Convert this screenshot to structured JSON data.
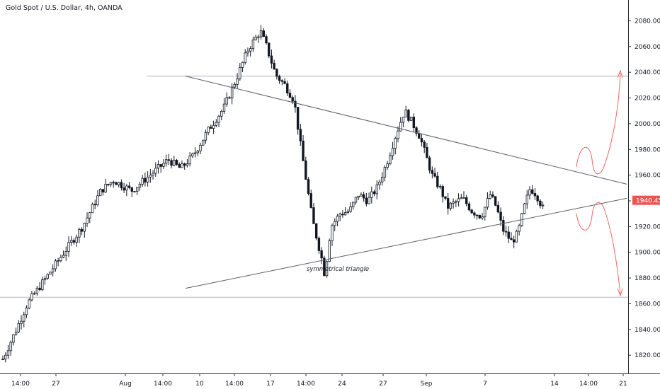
{
  "chart_data": {
    "type": "candlestick",
    "title": "Gold Spot / U.S. Dollar, 4h, OANDA",
    "ylim": [
      1808,
      2094
    ],
    "y_ticks": [
      "1820.000",
      "1840.000",
      "1860.000",
      "1880.000",
      "1900.000",
      "1920.000",
      "1940.000",
      "1960.000",
      "1980.000",
      "2000.000",
      "2020.000",
      "2040.000",
      "2060.000",
      "2080.000"
    ],
    "x_ticks": [
      "14:00",
      "27",
      "Aug",
      "14:00",
      "10",
      "14:00",
      "17",
      "14:00",
      "24",
      "27",
      "Sep",
      "7",
      "14",
      "14:00",
      "21"
    ],
    "grid": false,
    "last_price": "1940.456",
    "last_price_value": 1940.456,
    "annotation": "symmetrical triangle",
    "horizontal_levels": [
      2037,
      1865
    ],
    "trendlines": [
      {
        "name": "upper",
        "from": [
          0,
          2037
        ],
        "to": [
          176,
          1953
        ]
      },
      {
        "name": "lower",
        "from": [
          0,
          1872
        ],
        "to": [
          176,
          1942
        ]
      }
    ],
    "projections": [
      {
        "direction": "up",
        "target": 2036
      },
      {
        "direction": "down",
        "target": 1866
      }
    ],
    "anchors": [
      [
        0,
        1817
      ],
      [
        4,
        1838
      ],
      [
        8,
        1860
      ],
      [
        14,
        1880
      ],
      [
        20,
        1900
      ],
      [
        26,
        1920
      ],
      [
        32,
        1948
      ],
      [
        36,
        1956
      ],
      [
        42,
        1948
      ],
      [
        48,
        1960
      ],
      [
        54,
        1972
      ],
      [
        58,
        1965
      ],
      [
        62,
        1975
      ],
      [
        67,
        1995
      ],
      [
        72,
        2012
      ],
      [
        76,
        2034
      ],
      [
        80,
        2058
      ],
      [
        84,
        2072
      ],
      [
        86,
        2060
      ],
      [
        89,
        2038
      ],
      [
        92,
        2030
      ],
      [
        95,
        2018
      ],
      [
        97,
        1985
      ],
      [
        99,
        1955
      ],
      [
        101,
        1925
      ],
      [
        104,
        1895
      ],
      [
        105,
        1882
      ],
      [
        107,
        1920
      ],
      [
        110,
        1930
      ],
      [
        113,
        1932
      ],
      [
        116,
        1945
      ],
      [
        119,
        1940
      ],
      [
        122,
        1950
      ],
      [
        125,
        1968
      ],
      [
        128,
        1990
      ],
      [
        131,
        2010
      ],
      [
        133,
        2003
      ],
      [
        136,
        1990
      ],
      [
        138,
        1975
      ],
      [
        140,
        1960
      ],
      [
        143,
        1948
      ],
      [
        145,
        1935
      ],
      [
        147,
        1938
      ],
      [
        150,
        1942
      ],
      [
        153,
        1932
      ],
      [
        156,
        1928
      ],
      [
        159,
        1945
      ],
      [
        161,
        1935
      ],
      [
        163,
        1918
      ],
      [
        166,
        1908
      ],
      [
        168,
        1915
      ],
      [
        170,
        1935
      ],
      [
        172,
        1950
      ],
      [
        174,
        1945
      ],
      [
        177,
        1930
      ]
    ],
    "n_candles": 206
  }
}
